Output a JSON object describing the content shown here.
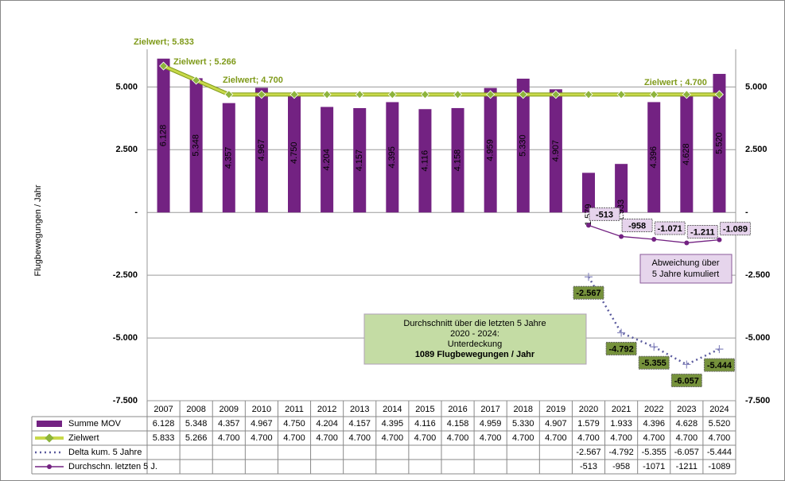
{
  "chart_data": {
    "type": "bar",
    "ylabel": "Flugbewegungen / Jahr",
    "categories": [
      "2007",
      "2008",
      "2009",
      "2010",
      "2011",
      "2012",
      "2013",
      "2014",
      "2015",
      "2016",
      "2017",
      "2018",
      "2019",
      "2020",
      "2021",
      "2022",
      "2023",
      "2024"
    ],
    "ylim": [
      -7500,
      6500
    ],
    "yticks": [
      {
        "value": 5000,
        "label": "5.000"
      },
      {
        "value": 2500,
        "label": "2.500"
      },
      {
        "value": 0,
        "label": "-"
      },
      {
        "value": -2500,
        "label": "-2.500"
      },
      {
        "value": -5000,
        "label": "-5.000"
      },
      {
        "value": -7500,
        "label": "-7.500"
      }
    ],
    "grid": true,
    "series": [
      {
        "name": "Summe MOV",
        "type": "bar",
        "color": "#732282",
        "values": [
          6128,
          5348,
          4357,
          4967,
          4750,
          4204,
          4157,
          4395,
          4116,
          4158,
          4959,
          5330,
          4907,
          1579,
          1933,
          4396,
          4628,
          5520
        ],
        "value_labels": [
          "6.128",
          "5.348",
          "4.357",
          "4.967",
          "4.750",
          "4.204",
          "4.157",
          "4.395",
          "4.116",
          "4.158",
          "4.959",
          "5.330",
          "4.907",
          "1.579",
          "1.933",
          "4.396",
          "4.628",
          "5.520"
        ]
      },
      {
        "name": "Zielwert",
        "type": "line",
        "color": "#c8d94a",
        "marker_color": "#8db43c",
        "values": [
          5833,
          5266,
          4700,
          4700,
          4700,
          4700,
          4700,
          4700,
          4700,
          4700,
          4700,
          4700,
          4700,
          4700,
          4700,
          4700,
          4700,
          4700
        ],
        "value_labels": [
          "5.833",
          "5.266",
          "4.700",
          "4.700",
          "4.700",
          "4.700",
          "4.700",
          "4.700",
          "4.700",
          "4.700",
          "4.700",
          "4.700",
          "4.700",
          "4.700",
          "4.700",
          "4.700",
          "4.700",
          "4.700"
        ]
      },
      {
        "name": "Delta kum. 5 Jahre",
        "type": "dotted",
        "color": "#5b5b9e",
        "label_fill": "#76923c",
        "values": [
          null,
          null,
          null,
          null,
          null,
          null,
          null,
          null,
          null,
          null,
          null,
          null,
          null,
          -2567,
          -4792,
          -5355,
          -6057,
          -5444
        ],
        "value_labels": [
          null,
          null,
          null,
          null,
          null,
          null,
          null,
          null,
          null,
          null,
          null,
          null,
          null,
          "-2.567",
          "-4.792",
          "-5.355",
          "-6.057",
          "-5.444"
        ]
      },
      {
        "name": "Durchschn. letzten 5 J.",
        "type": "dotline",
        "color": "#732282",
        "label_fill": "#e6d3ec",
        "values": [
          null,
          null,
          null,
          null,
          null,
          null,
          null,
          null,
          null,
          null,
          null,
          null,
          null,
          -513,
          -958,
          -1071,
          -1211,
          -1089
        ],
        "value_labels": [
          null,
          null,
          null,
          null,
          null,
          null,
          null,
          null,
          null,
          null,
          null,
          null,
          null,
          "-513",
          "-958",
          "-1.071",
          "-1.211",
          "-1.089"
        ]
      }
    ],
    "annotations": [
      "Zielwert; 5.833",
      "Zielwert ;  5.266",
      "Zielwert; 4.700",
      "Zielwert ;  4.700"
    ],
    "note_box": [
      "Abweichung über",
      "5 Jahre kumuliert"
    ],
    "info_box": [
      "Durchschnitt über die letzten 5 Jahre",
      "2020 - 2024:",
      "Unterdeckung",
      "1089 Flugbewegungen / Jahr"
    ]
  }
}
